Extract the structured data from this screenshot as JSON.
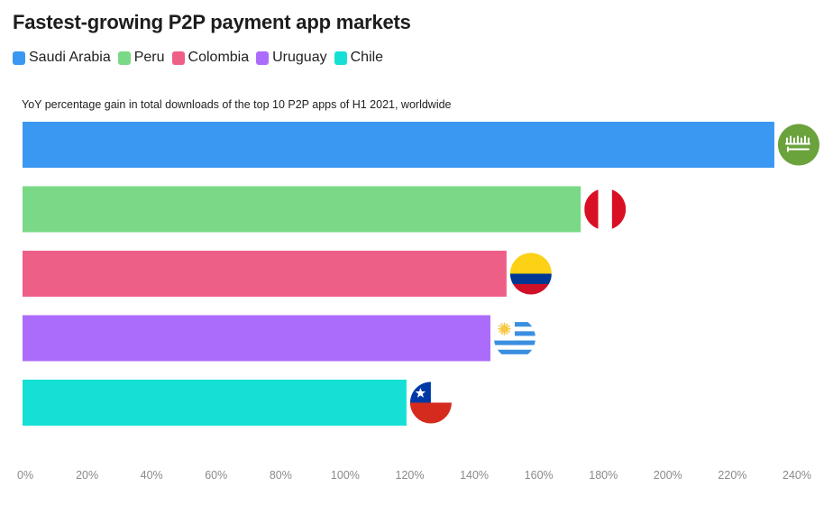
{
  "chart_data": {
    "type": "bar",
    "orientation": "horizontal",
    "title": "Fastest-growing P2P payment app markets",
    "subtitle": "YoY percentage gain in total downloads of the top 10 P2P apps of H1 2021, worldwide",
    "categories": [
      "Saudi Arabia",
      "Peru",
      "Colombia",
      "Uruguay",
      "Chile"
    ],
    "values": [
      233,
      173,
      150,
      145,
      119
    ],
    "colors": [
      "#3b98f2",
      "#7ad986",
      "#ee5f87",
      "#ac6cfb",
      "#16e0d6"
    ],
    "xlim": [
      0,
      240
    ],
    "x_ticks": [
      "0%",
      "20%",
      "40%",
      "60%",
      "80%",
      "100%",
      "120%",
      "140%",
      "160%",
      "180%",
      "200%",
      "220%",
      "240%"
    ],
    "x_tick_values": [
      0,
      20,
      40,
      60,
      80,
      100,
      120,
      140,
      160,
      180,
      200,
      220,
      240
    ],
    "legend": {
      "placement": "top-left",
      "entries": [
        "Saudi Arabia",
        "Peru",
        "Colombia",
        "Uruguay",
        "Chile"
      ]
    },
    "flag_icons": [
      "saudi-arabia-flag-icon",
      "peru-flag-icon",
      "colombia-flag-icon",
      "uruguay-flag-icon",
      "chile-flag-icon"
    ],
    "grid": false
  }
}
